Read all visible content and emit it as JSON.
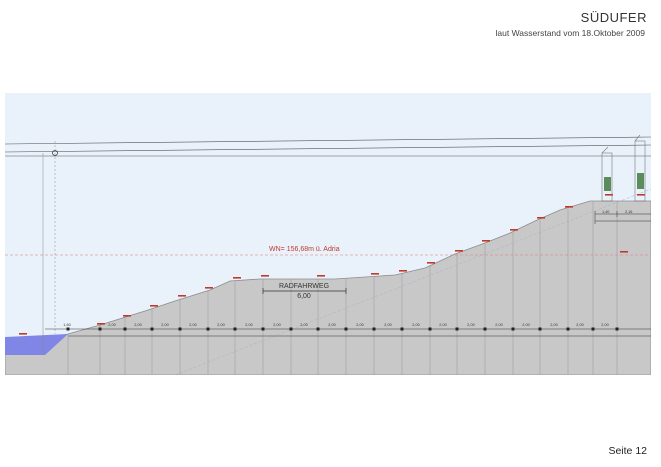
{
  "header": {
    "title": "SÜDUFER",
    "subtitle": "laut Wasserstand vom 18.Oktober 2009"
  },
  "footer": {
    "page_label": "Seite 12"
  },
  "section": {
    "water_level_label": "WN= 156,68m ü. Adria",
    "bike_path_label": "RADFAHRWEG",
    "bike_path_width": "6,00",
    "segment_widths": [
      "1,60",
      "2,00",
      "2,00",
      "2,00",
      "2,00",
      "2,00",
      "2,00",
      "2,00",
      "2,00",
      "2,00",
      "2,00",
      "2,00",
      "2,00",
      "2,00",
      "2,00",
      "2,00",
      "2,00",
      "2,00",
      "2,00",
      "2,00"
    ],
    "right_widths": [
      "1,40",
      "2,16"
    ]
  },
  "colors": {
    "sky": "#e9f2fb",
    "ground": "#c8c8c8",
    "water": "#8086e6",
    "guide": "#9a9a9a",
    "red_marker": "#c0392b",
    "pole_green": "#5a8c5c"
  }
}
